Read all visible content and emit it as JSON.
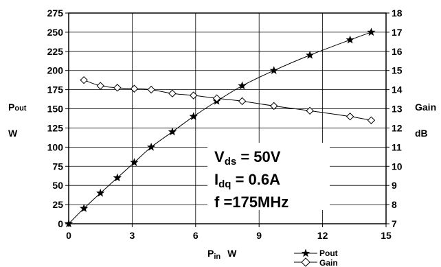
{
  "chart_data": {
    "type": "line",
    "x": {
      "label_main": "P",
      "label_sub": "in",
      "label_unit": "W",
      "lim": [
        0,
        15
      ],
      "ticks": [
        0,
        3,
        6,
        9,
        12,
        15
      ]
    },
    "y_left": {
      "label_main": "P",
      "label_sub": "out",
      "label_unit": "W",
      "lim": [
        0,
        275
      ],
      "ticks": [
        0,
        25,
        50,
        75,
        100,
        125,
        150,
        175,
        200,
        225,
        250,
        275
      ]
    },
    "y_right": {
      "label": "Gain",
      "label_unit": "dB",
      "lim": [
        7,
        18
      ],
      "ticks": [
        7,
        8,
        9,
        10,
        11,
        12,
        13,
        14,
        15,
        16,
        17,
        18
      ]
    },
    "grid": true,
    "series": [
      {
        "name": "Pout",
        "axis": "left",
        "marker": "star",
        "points": [
          [
            0,
            0
          ],
          [
            0.72,
            20
          ],
          [
            1.5,
            40
          ],
          [
            2.3,
            60
          ],
          [
            3.1,
            80
          ],
          [
            3.9,
            100
          ],
          [
            4.9,
            120
          ],
          [
            5.9,
            140
          ],
          [
            7.0,
            160
          ],
          [
            8.2,
            180
          ],
          [
            9.7,
            200
          ],
          [
            11.4,
            220
          ],
          [
            13.3,
            240
          ],
          [
            14.3,
            250
          ]
        ]
      },
      {
        "name": "Gain",
        "axis": "right",
        "marker": "diamond",
        "points": [
          [
            0.72,
            14.5
          ],
          [
            1.5,
            14.2
          ],
          [
            2.3,
            14.1
          ],
          [
            3.1,
            14.05
          ],
          [
            3.9,
            14.0
          ],
          [
            4.9,
            13.8
          ],
          [
            5.9,
            13.7
          ],
          [
            7.0,
            13.55
          ],
          [
            8.2,
            13.4
          ],
          [
            9.7,
            13.15
          ],
          [
            11.4,
            12.9
          ],
          [
            13.3,
            12.6
          ],
          [
            14.3,
            12.4
          ]
        ]
      }
    ],
    "annotations": {
      "vds_main": "V",
      "vds_sub": "ds",
      "vds_value": " = 50V",
      "idq_main": "I",
      "idq_sub": "dq",
      "idq_value": " = 0.6A",
      "freq": "f =175MHz"
    }
  }
}
